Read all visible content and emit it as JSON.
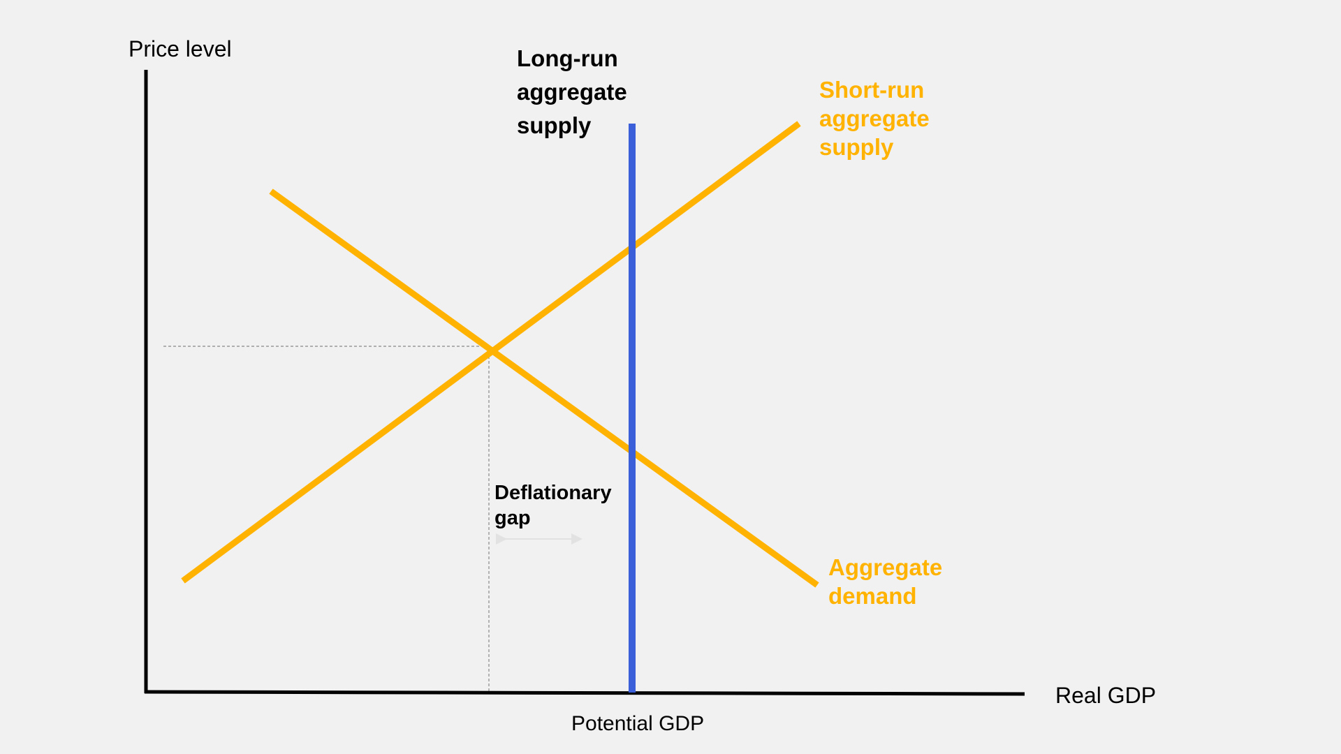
{
  "diagram": {
    "y_axis_label": "Price level",
    "x_axis_label": "Real GDP",
    "x_tick_label": "Potential GDP",
    "curves": {
      "lras": {
        "label_lines": [
          "Long-run",
          "aggregate",
          "supply"
        ],
        "color": "#3b5fd9"
      },
      "sras": {
        "label_lines": [
          "Short-run",
          "aggregate",
          "supply"
        ],
        "color": "#ffb300"
      },
      "ad": {
        "label_lines": [
          "Aggregate",
          "demand"
        ],
        "color": "#ffb300"
      }
    },
    "annotation": {
      "label_lines": [
        "Deflationary",
        "gap"
      ]
    },
    "colors": {
      "axis": "#000000",
      "guide": "#888888",
      "background": "#f1f1f1"
    }
  }
}
